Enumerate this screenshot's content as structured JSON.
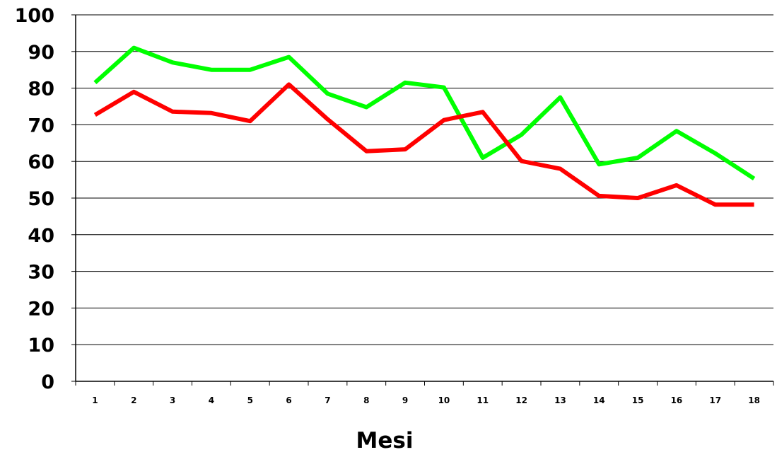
{
  "chart_data": {
    "type": "line",
    "title": "",
    "xlabel": "Mesi",
    "ylabel": "",
    "x": [
      1,
      2,
      3,
      4,
      5,
      6,
      7,
      8,
      9,
      10,
      11,
      12,
      13,
      14,
      15,
      16,
      17,
      18
    ],
    "ylim": [
      0,
      100
    ],
    "yticks": [
      0,
      10,
      20,
      30,
      40,
      50,
      60,
      70,
      80,
      90,
      100
    ],
    "grid": true,
    "legend": "none",
    "series": [
      {
        "color": "#00ff00",
        "values": [
          81.5,
          91,
          87,
          85,
          85,
          88.5,
          78.5,
          74.8,
          81.5,
          80.2,
          61,
          67.3,
          77.5,
          59.2,
          61,
          68.3,
          62.2,
          55.3
        ]
      },
      {
        "color": "#ff0000",
        "values": [
          72.7,
          79,
          73.6,
          73.2,
          71,
          81,
          71.5,
          62.8,
          63.3,
          71.3,
          73.5,
          60.1,
          58,
          50.6,
          50,
          53.5,
          48.2,
          48.2
        ]
      }
    ]
  }
}
